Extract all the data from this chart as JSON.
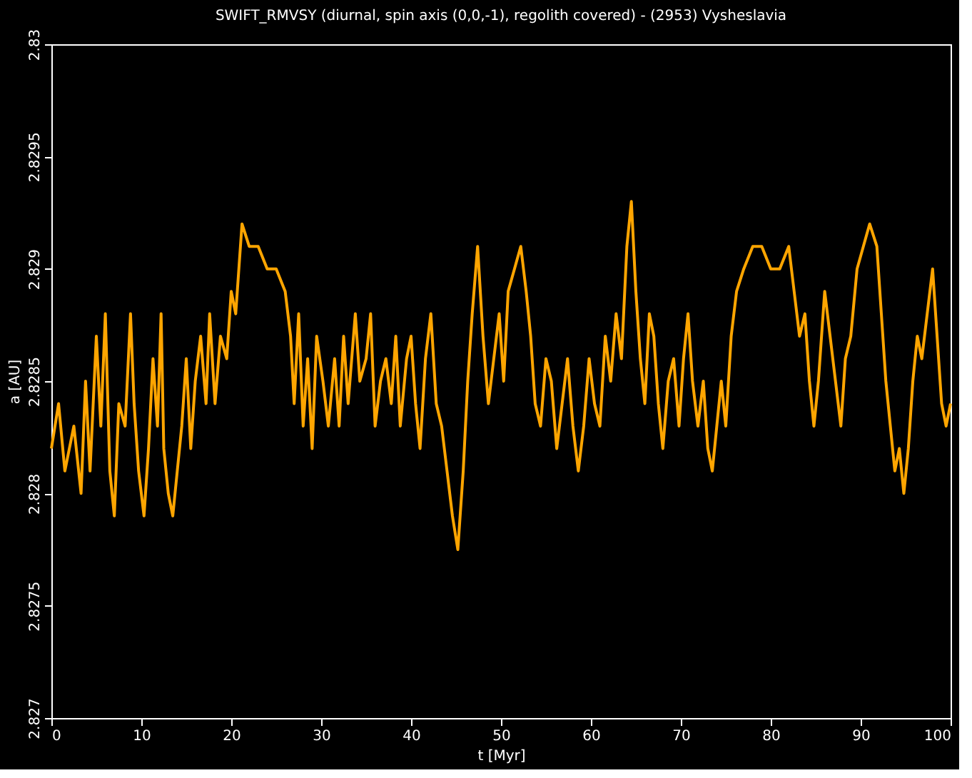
{
  "chart_data": {
    "type": "line",
    "title": "SWIFT_RMVSY (diurnal, spin axis (0,0,-1), regolith covered) - (2953) Vysheslavia",
    "xlabel": "t [Myr]",
    "ylabel": "a [AU]",
    "xlim": [
      0,
      100
    ],
    "xticks": [
      0,
      10,
      20,
      30,
      40,
      50,
      60,
      70,
      80,
      90,
      100
    ],
    "ylim": [
      2.827,
      2.83
    ],
    "yticks": [
      2.827,
      2.8275,
      2.828,
      2.8285,
      2.829,
      2.8295,
      2.83
    ],
    "marker": "none",
    "line_style": "solid",
    "x": [
      0,
      0.8,
      1.5,
      2.5,
      3.3,
      3.8,
      4.3,
      5.0,
      5.5,
      6.0,
      6.5,
      7.0,
      7.5,
      8.2,
      8.8,
      9.2,
      9.7,
      10.3,
      10.8,
      11.3,
      11.8,
      12.2,
      12.5,
      13.0,
      13.5,
      14.0,
      14.5,
      15.0,
      15.5,
      16.0,
      16.6,
      17.2,
      17.6,
      18.2,
      18.8,
      19.5,
      20.0,
      20.5,
      21.2,
      22,
      23,
      24,
      25,
      26,
      26.6,
      27.0,
      27.5,
      28.0,
      28.5,
      29.0,
      29.5,
      30.2,
      30.8,
      31.5,
      32,
      32.5,
      33,
      33.8,
      34.3,
      35,
      35.5,
      36,
      36.6,
      37.2,
      37.8,
      38.3,
      38.8,
      39.5,
      40,
      40.5,
      41,
      41.6,
      42.2,
      42.8,
      43.4,
      44,
      44.6,
      45.2,
      45.8,
      46.3,
      46.8,
      47.4,
      48.0,
      48.6,
      49.2,
      49.8,
      50.3,
      50.8,
      51.5,
      52.2,
      52.8,
      53.3,
      53.8,
      54.4,
      55,
      55.6,
      56.2,
      56.8,
      57.4,
      58,
      58.6,
      59.2,
      59.8,
      60.4,
      61,
      61.6,
      62.2,
      62.8,
      63.4,
      64.0,
      64.5,
      65.0,
      65.5,
      66.0,
      66.5,
      67,
      67.5,
      68,
      68.6,
      69.2,
      69.8,
      70.3,
      70.8,
      71.3,
      71.9,
      72.5,
      73,
      73.5,
      74,
      74.5,
      75,
      75.6,
      76.2,
      77,
      78,
      79,
      80,
      81,
      82,
      82.6,
      83.2,
      83.8,
      84.3,
      84.8,
      85.3,
      86,
      86.6,
      87.2,
      87.8,
      88.3,
      88.9,
      89.6,
      90.3,
      91,
      91.8,
      92.3,
      92.8,
      93.3,
      93.8,
      94.3,
      94.8,
      95.3,
      95.8,
      96.3,
      96.8,
      97.4,
      98,
      98.5,
      99.0,
      99.5,
      100
    ],
    "series": [
      {
        "color": "#ffa500",
        "values": [
          2.8282,
          2.8284,
          2.8281,
          2.8283,
          2.828,
          2.8285,
          2.8281,
          2.8287,
          2.8283,
          2.8288,
          2.8281,
          2.8279,
          2.8284,
          2.8283,
          2.8288,
          2.8284,
          2.8281,
          2.8279,
          2.8282,
          2.8286,
          2.8283,
          2.8288,
          2.8282,
          2.828,
          2.8279,
          2.8281,
          2.8283,
          2.8286,
          2.8282,
          2.8285,
          2.8287,
          2.8284,
          2.8288,
          2.8284,
          2.8287,
          2.8286,
          2.8289,
          2.8288,
          2.8292,
          2.8291,
          2.8291,
          2.829,
          2.829,
          2.8289,
          2.8287,
          2.8284,
          2.8288,
          2.8283,
          2.8286,
          2.8282,
          2.8287,
          2.8285,
          2.8283,
          2.8286,
          2.8283,
          2.8287,
          2.8284,
          2.8288,
          2.8285,
          2.8286,
          2.8288,
          2.8283,
          2.8285,
          2.8286,
          2.8284,
          2.8287,
          2.8283,
          2.8286,
          2.8287,
          2.8284,
          2.8282,
          2.8286,
          2.8288,
          2.8284,
          2.8283,
          2.8281,
          2.8279,
          2.82775,
          2.8281,
          2.8285,
          2.8288,
          2.8291,
          2.8287,
          2.8284,
          2.8286,
          2.8288,
          2.8285,
          2.8289,
          2.829,
          2.8291,
          2.8289,
          2.8287,
          2.8284,
          2.8283,
          2.8286,
          2.8285,
          2.8282,
          2.8284,
          2.8286,
          2.8283,
          2.8281,
          2.8283,
          2.8286,
          2.8284,
          2.8283,
          2.8287,
          2.8285,
          2.8288,
          2.8286,
          2.8291,
          2.8293,
          2.8289,
          2.8286,
          2.8284,
          2.8288,
          2.8287,
          2.8284,
          2.8282,
          2.8285,
          2.8286,
          2.8283,
          2.8286,
          2.8288,
          2.8285,
          2.8283,
          2.8285,
          2.8282,
          2.8281,
          2.8283,
          2.8285,
          2.8283,
          2.8287,
          2.8289,
          2.829,
          2.8291,
          2.8291,
          2.829,
          2.829,
          2.8291,
          2.8289,
          2.8287,
          2.8288,
          2.8285,
          2.8283,
          2.8285,
          2.8289,
          2.8287,
          2.8285,
          2.8283,
          2.8286,
          2.8287,
          2.829,
          2.8291,
          2.8292,
          2.8291,
          2.8288,
          2.8285,
          2.8283,
          2.8281,
          2.8282,
          2.828,
          2.8282,
          2.8285,
          2.8287,
          2.8286,
          2.8288,
          2.829,
          2.8287,
          2.8284,
          2.8283,
          2.8284
        ]
      }
    ]
  }
}
